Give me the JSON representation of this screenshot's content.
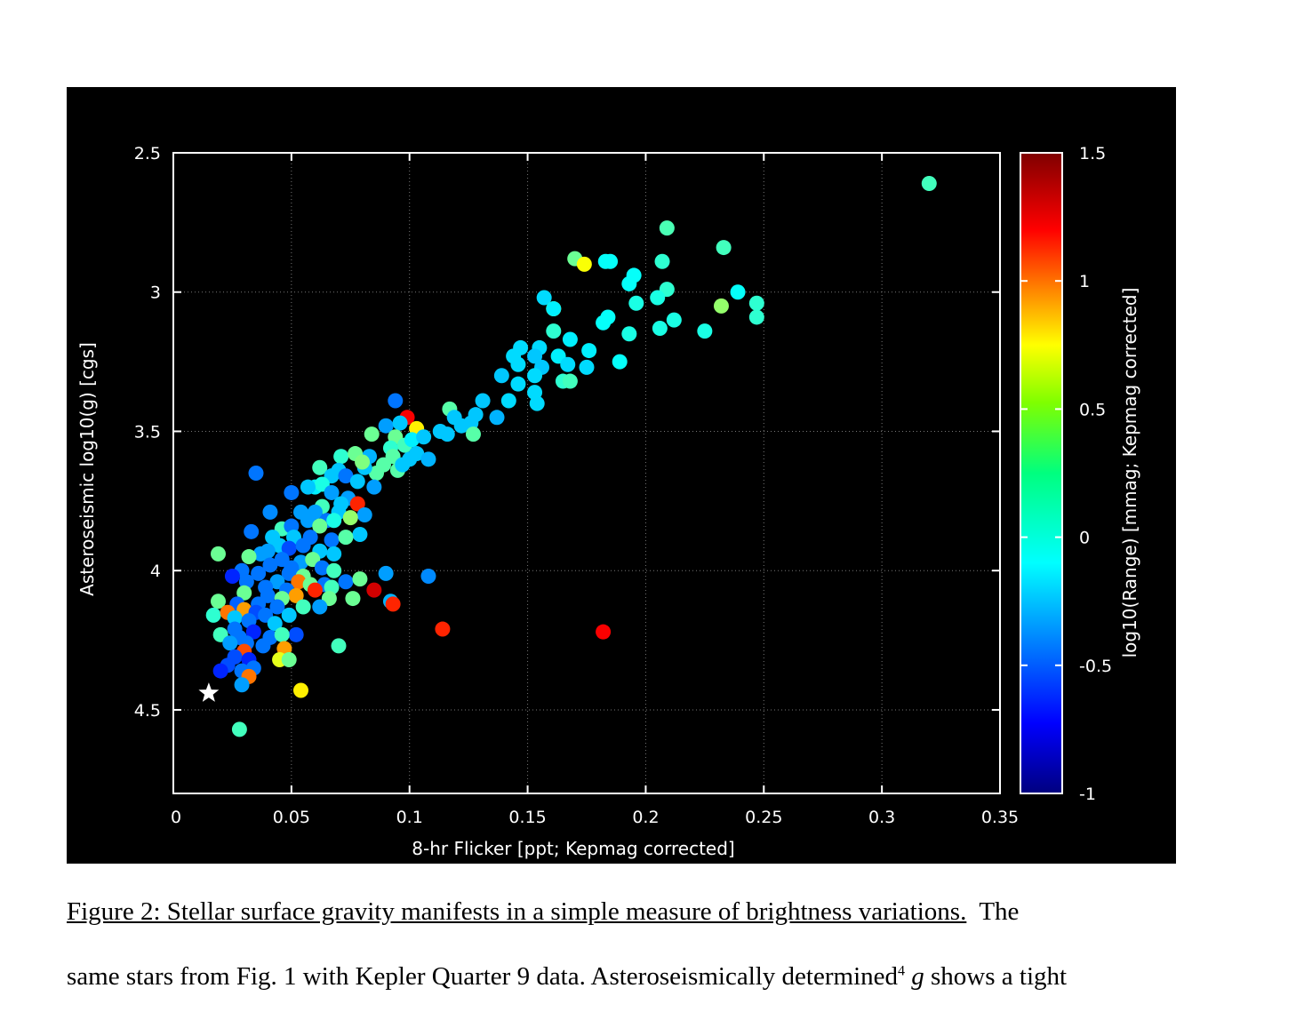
{
  "chart_data": {
    "type": "scatter",
    "xlabel": "8-hr Flicker [ppt; Kepmag corrected]",
    "ylabel": "Asteroseismic  log10(g)  [cgs]",
    "xlim": [
      0,
      0.35
    ],
    "ylim": [
      4.8,
      2.5
    ],
    "y_inverted": true,
    "x_ticks": [
      "0",
      "0.05",
      "0.1",
      "0.15",
      "0.2",
      "0.25",
      "0.3",
      "0.35"
    ],
    "y_ticks": [
      "2.5",
      "3",
      "3.5",
      "4",
      "4.5"
    ],
    "grid": "dotted, major ticks",
    "colorbar": {
      "label": "log10(Range) [mmag; Kepmag corrected]",
      "range": [
        -1,
        1.5
      ],
      "ticks": [
        "1.5",
        "1",
        "0.5",
        "0",
        "-0.5",
        "-1"
      ],
      "colormap": "jet"
    },
    "reference_marker": {
      "symbol": "white star",
      "x": 0.015,
      "y": 4.44
    },
    "points": [
      [
        0.32,
        2.61,
        0.1
      ],
      [
        0.209,
        2.77,
        0.12
      ],
      [
        0.233,
        2.84,
        0.1
      ],
      [
        0.17,
        2.88,
        0.2
      ],
      [
        0.174,
        2.9,
        0.55
      ],
      [
        0.183,
        2.89,
        -0.05
      ],
      [
        0.185,
        2.89,
        -0.05
      ],
      [
        0.207,
        2.89,
        0.05
      ],
      [
        0.195,
        2.94,
        -0.05
      ],
      [
        0.193,
        2.97,
        -0.05
      ],
      [
        0.209,
        2.99,
        0.05
      ],
      [
        0.205,
        3.02,
        0.0
      ],
      [
        0.196,
        3.04,
        0.0
      ],
      [
        0.239,
        3.0,
        -0.05
      ],
      [
        0.247,
        3.04,
        0.05
      ],
      [
        0.247,
        3.09,
        0.05
      ],
      [
        0.232,
        3.05,
        0.3
      ],
      [
        0.157,
        3.02,
        -0.15
      ],
      [
        0.161,
        3.06,
        0.6
      ],
      [
        0.161,
        3.06,
        -0.1
      ],
      [
        0.184,
        3.09,
        -0.05
      ],
      [
        0.182,
        3.11,
        -0.05
      ],
      [
        0.212,
        3.1,
        0.0
      ],
      [
        0.206,
        3.13,
        0.0
      ],
      [
        0.225,
        3.14,
        0.0
      ],
      [
        0.193,
        3.15,
        0.0
      ],
      [
        0.161,
        3.14,
        0.05
      ],
      [
        0.168,
        3.17,
        -0.1
      ],
      [
        0.155,
        3.2,
        -0.15
      ],
      [
        0.147,
        3.2,
        -0.15
      ],
      [
        0.144,
        3.23,
        -0.15
      ],
      [
        0.153,
        3.23,
        -0.2
      ],
      [
        0.163,
        3.23,
        -0.1
      ],
      [
        0.176,
        3.21,
        -0.1
      ],
      [
        0.189,
        3.25,
        -0.05
      ],
      [
        0.167,
        3.26,
        -0.15
      ],
      [
        0.175,
        3.27,
        -0.15
      ],
      [
        0.146,
        3.26,
        -0.15
      ],
      [
        0.156,
        3.27,
        -0.2
      ],
      [
        0.153,
        3.3,
        -0.15
      ],
      [
        0.139,
        3.3,
        -0.2
      ],
      [
        0.165,
        3.32,
        0.05
      ],
      [
        0.168,
        3.32,
        0.1
      ],
      [
        0.146,
        3.33,
        -0.15
      ],
      [
        0.153,
        3.36,
        -0.15
      ],
      [
        0.142,
        3.39,
        -0.15
      ],
      [
        0.154,
        3.4,
        -0.15
      ],
      [
        0.131,
        3.39,
        -0.2
      ],
      [
        0.137,
        3.45,
        -0.25
      ],
      [
        0.117,
        3.42,
        0.15
      ],
      [
        0.128,
        3.44,
        -0.2
      ],
      [
        0.119,
        3.45,
        -0.2
      ],
      [
        0.126,
        3.47,
        -0.2
      ],
      [
        0.122,
        3.48,
        -0.2
      ],
      [
        0.113,
        3.5,
        -0.2
      ],
      [
        0.116,
        3.51,
        -0.2
      ],
      [
        0.127,
        3.51,
        0.15
      ],
      [
        0.094,
        3.39,
        -0.4
      ],
      [
        0.099,
        3.45,
        1.2
      ],
      [
        0.103,
        3.49,
        0.6
      ],
      [
        0.084,
        3.51,
        0.2
      ],
      [
        0.09,
        3.48,
        -0.3
      ],
      [
        0.096,
        3.47,
        -0.2
      ],
      [
        0.094,
        3.52,
        0.2
      ],
      [
        0.098,
        3.55,
        0.1
      ],
      [
        0.101,
        3.53,
        -0.1
      ],
      [
        0.106,
        3.52,
        -0.2
      ],
      [
        0.092,
        3.56,
        0.05
      ],
      [
        0.1,
        3.6,
        -0.2
      ],
      [
        0.103,
        3.58,
        -0.2
      ],
      [
        0.108,
        3.6,
        -0.25
      ],
      [
        0.093,
        3.59,
        0.15
      ],
      [
        0.083,
        3.59,
        -0.25
      ],
      [
        0.089,
        3.62,
        0.15
      ],
      [
        0.086,
        3.65,
        0.15
      ],
      [
        0.095,
        3.64,
        0.15
      ],
      [
        0.097,
        3.62,
        -0.2
      ],
      [
        0.081,
        3.63,
        -0.2
      ],
      [
        0.071,
        3.59,
        0.05
      ],
      [
        0.077,
        3.58,
        0.2
      ],
      [
        0.08,
        3.61,
        0.25
      ],
      [
        0.062,
        3.63,
        0.1
      ],
      [
        0.07,
        3.64,
        -0.2
      ],
      [
        0.067,
        3.66,
        -0.2
      ],
      [
        0.073,
        3.66,
        -0.4
      ],
      [
        0.078,
        3.68,
        -0.2
      ],
      [
        0.085,
        3.7,
        -0.3
      ],
      [
        0.06,
        3.7,
        -0.1
      ],
      [
        0.063,
        3.69,
        0.0
      ],
      [
        0.057,
        3.7,
        -0.2
      ],
      [
        0.05,
        3.72,
        -0.4
      ],
      [
        0.067,
        3.72,
        -0.3
      ],
      [
        0.035,
        3.65,
        -0.4
      ],
      [
        0.074,
        3.74,
        -0.3
      ],
      [
        0.071,
        3.76,
        -0.2
      ],
      [
        0.078,
        3.76,
        1.1
      ],
      [
        0.063,
        3.77,
        0.1
      ],
      [
        0.06,
        3.79,
        -0.3
      ],
      [
        0.054,
        3.79,
        -0.3
      ],
      [
        0.041,
        3.79,
        -0.35
      ],
      [
        0.07,
        3.79,
        -0.2
      ],
      [
        0.081,
        3.8,
        -0.3
      ],
      [
        0.075,
        3.81,
        0.3
      ],
      [
        0.065,
        3.82,
        -0.4
      ],
      [
        0.057,
        3.82,
        -0.3
      ],
      [
        0.068,
        3.82,
        0.0
      ],
      [
        0.046,
        3.85,
        0.1
      ],
      [
        0.05,
        3.84,
        -0.4
      ],
      [
        0.062,
        3.84,
        0.2
      ],
      [
        0.033,
        3.86,
        -0.4
      ],
      [
        0.042,
        3.88,
        -0.2
      ],
      [
        0.051,
        3.88,
        -0.2
      ],
      [
        0.058,
        3.88,
        -0.4
      ],
      [
        0.067,
        3.89,
        -0.4
      ],
      [
        0.079,
        3.87,
        -0.2
      ],
      [
        0.073,
        3.88,
        0.15
      ],
      [
        0.045,
        3.91,
        -0.2
      ],
      [
        0.049,
        3.92,
        -0.5
      ],
      [
        0.055,
        3.91,
        -0.4
      ],
      [
        0.062,
        3.93,
        -0.2
      ],
      [
        0.04,
        3.93,
        -0.3
      ],
      [
        0.037,
        3.94,
        -0.3
      ],
      [
        0.068,
        3.94,
        -0.2
      ],
      [
        0.019,
        3.94,
        0.2
      ],
      [
        0.032,
        3.95,
        0.2
      ],
      [
        0.046,
        3.96,
        -0.4
      ],
      [
        0.054,
        3.97,
        -0.3
      ],
      [
        0.059,
        3.96,
        0.2
      ],
      [
        0.041,
        3.98,
        -0.4
      ],
      [
        0.05,
        3.99,
        -0.4
      ],
      [
        0.063,
        3.99,
        -0.4
      ],
      [
        0.068,
        4.0,
        0.1
      ],
      [
        0.029,
        4.0,
        -0.4
      ],
      [
        0.036,
        4.01,
        -0.4
      ],
      [
        0.049,
        4.01,
        -0.4
      ],
      [
        0.055,
        4.02,
        0.2
      ],
      [
        0.09,
        4.01,
        -0.3
      ],
      [
        0.108,
        4.02,
        -0.35
      ],
      [
        0.025,
        4.02,
        -0.6
      ],
      [
        0.031,
        4.04,
        -0.4
      ],
      [
        0.044,
        4.04,
        -0.3
      ],
      [
        0.053,
        4.04,
        0.9
      ],
      [
        0.058,
        4.05,
        0.2
      ],
      [
        0.064,
        4.05,
        -0.4
      ],
      [
        0.073,
        4.04,
        -0.4
      ],
      [
        0.079,
        4.03,
        0.2
      ],
      [
        0.039,
        4.06,
        -0.4
      ],
      [
        0.048,
        4.07,
        -0.4
      ],
      [
        0.067,
        4.06,
        0.1
      ],
      [
        0.06,
        4.07,
        1.1
      ],
      [
        0.085,
        4.07,
        1.3
      ],
      [
        0.03,
        4.08,
        0.2
      ],
      [
        0.04,
        4.09,
        -0.4
      ],
      [
        0.052,
        4.09,
        0.8
      ],
      [
        0.046,
        4.1,
        0.2
      ],
      [
        0.066,
        4.1,
        0.2
      ],
      [
        0.076,
        4.1,
        0.2
      ],
      [
        0.092,
        4.11,
        -0.25
      ],
      [
        0.093,
        4.12,
        1.1
      ],
      [
        0.019,
        4.11,
        0.2
      ],
      [
        0.027,
        4.12,
        -0.45
      ],
      [
        0.036,
        4.12,
        -0.4
      ],
      [
        0.044,
        4.13,
        -0.4
      ],
      [
        0.055,
        4.13,
        0.1
      ],
      [
        0.062,
        4.13,
        -0.3
      ],
      [
        0.03,
        4.14,
        0.8
      ],
      [
        0.035,
        4.15,
        -0.5
      ],
      [
        0.039,
        4.16,
        -0.4
      ],
      [
        0.049,
        4.16,
        -0.2
      ],
      [
        0.017,
        4.16,
        0.05
      ],
      [
        0.023,
        4.15,
        0.9
      ],
      [
        0.026,
        4.17,
        -0.2
      ],
      [
        0.032,
        4.18,
        -0.4
      ],
      [
        0.043,
        4.19,
        -0.2
      ],
      [
        0.114,
        4.21,
        1.1
      ],
      [
        0.182,
        4.22,
        1.2
      ],
      [
        0.052,
        4.23,
        -0.5
      ],
      [
        0.02,
        4.23,
        0.1
      ],
      [
        0.026,
        4.21,
        -0.4
      ],
      [
        0.034,
        4.22,
        -0.6
      ],
      [
        0.041,
        4.24,
        -0.4
      ],
      [
        0.046,
        4.23,
        0.1
      ],
      [
        0.028,
        4.24,
        -0.4
      ],
      [
        0.07,
        4.27,
        0.1
      ],
      [
        0.024,
        4.26,
        -0.3
      ],
      [
        0.031,
        4.26,
        -0.4
      ],
      [
        0.038,
        4.27,
        -0.4
      ],
      [
        0.047,
        4.28,
        0.8
      ],
      [
        0.03,
        4.29,
        1.0
      ],
      [
        0.026,
        4.31,
        -0.5
      ],
      [
        0.032,
        4.32,
        -0.6
      ],
      [
        0.045,
        4.32,
        0.5
      ],
      [
        0.049,
        4.32,
        0.2
      ],
      [
        0.023,
        4.34,
        -0.5
      ],
      [
        0.034,
        4.35,
        -0.4
      ],
      [
        0.029,
        4.36,
        -0.4
      ],
      [
        0.02,
        4.36,
        -0.6
      ],
      [
        0.032,
        4.38,
        0.9
      ],
      [
        0.029,
        4.41,
        -0.3
      ],
      [
        0.054,
        4.43,
        0.6
      ],
      [
        0.028,
        4.57,
        0.1
      ]
    ]
  },
  "caption": {
    "title": "Figure 2: Stellar surface gravity manifests in a simple measure of brightness variations.",
    "title_tail": "The",
    "line2_a": "same stars from Fig. 1 with Kepler Quarter 9 data. Asteroseismically determined",
    "line2_sup": "4",
    "line2_g": "g",
    "line2_b": "shows a tight"
  }
}
